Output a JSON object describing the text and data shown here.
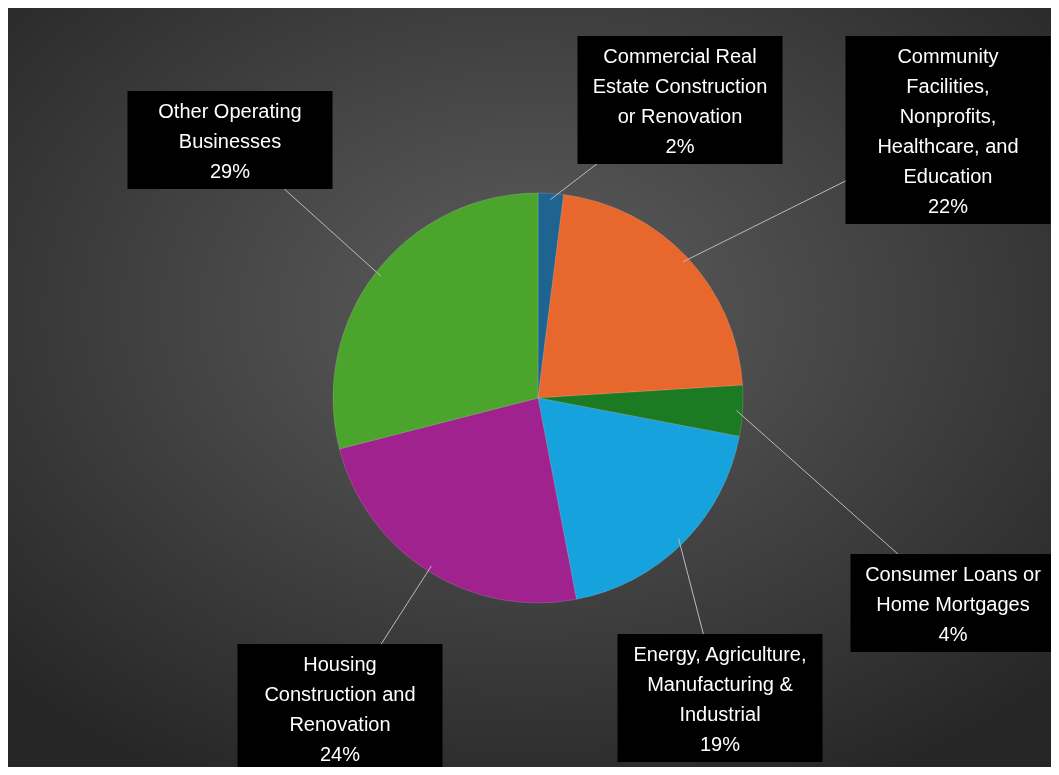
{
  "chart_data": {
    "type": "pie",
    "categories": [
      "Commercial Real Estate Construction or Renovation",
      "Community Facilities, Nonprofits, Healthcare, and Education",
      "Consumer Loans or Home Mortgages",
      "Energy, Agriculture, Manufacturing & Industrial",
      "Housing Construction and Renovation",
      "Other Operating Businesses"
    ],
    "values": [
      2,
      22,
      4,
      19,
      24,
      29
    ],
    "colors": [
      "#1f6491",
      "#e8672c",
      "#1c7a22",
      "#16a3dd",
      "#a0228f",
      "#4ba52c"
    ],
    "value_labels": [
      "2%",
      "22%",
      "4%",
      "19%",
      "24%",
      "29%"
    ]
  }
}
